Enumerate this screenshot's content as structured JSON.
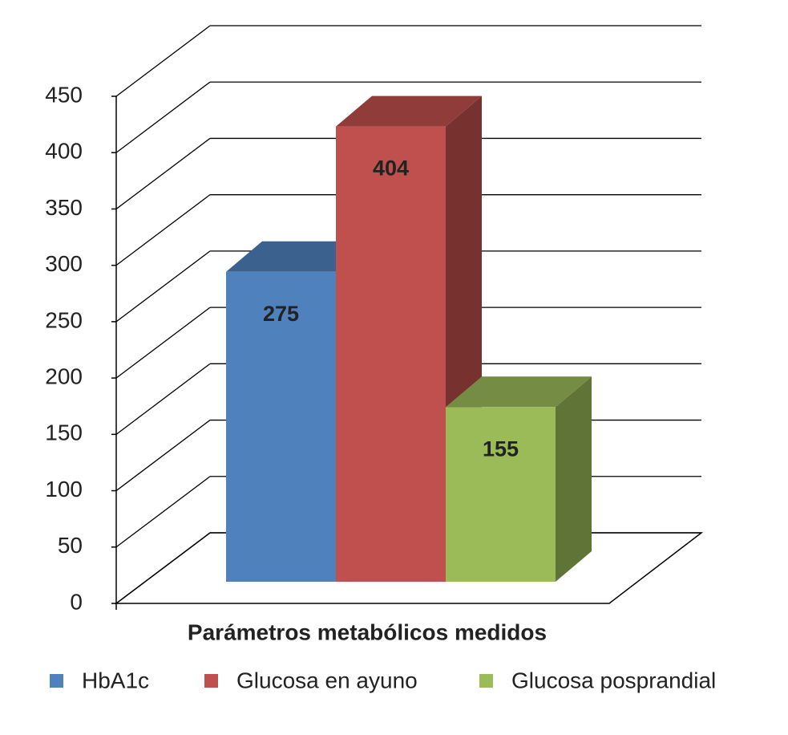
{
  "chart_data": {
    "type": "bar3d",
    "categories": [
      "Parámetros metabólicos medidos"
    ],
    "series": [
      {
        "name": "HbA1c",
        "color": "#4f81bd",
        "values": [
          275
        ]
      },
      {
        "name": "Glucosa en ayuno",
        "color": "#c0504d",
        "values": [
          404
        ]
      },
      {
        "name": "Glucosa posprandial",
        "color": "#9bbb59",
        "values": [
          155
        ]
      }
    ],
    "ylim": [
      0,
      450
    ],
    "yticks": [
      0,
      50,
      100,
      150,
      200,
      250,
      300,
      350,
      400,
      450
    ],
    "grid": true,
    "legend": "bottom",
    "data_labels": true
  }
}
